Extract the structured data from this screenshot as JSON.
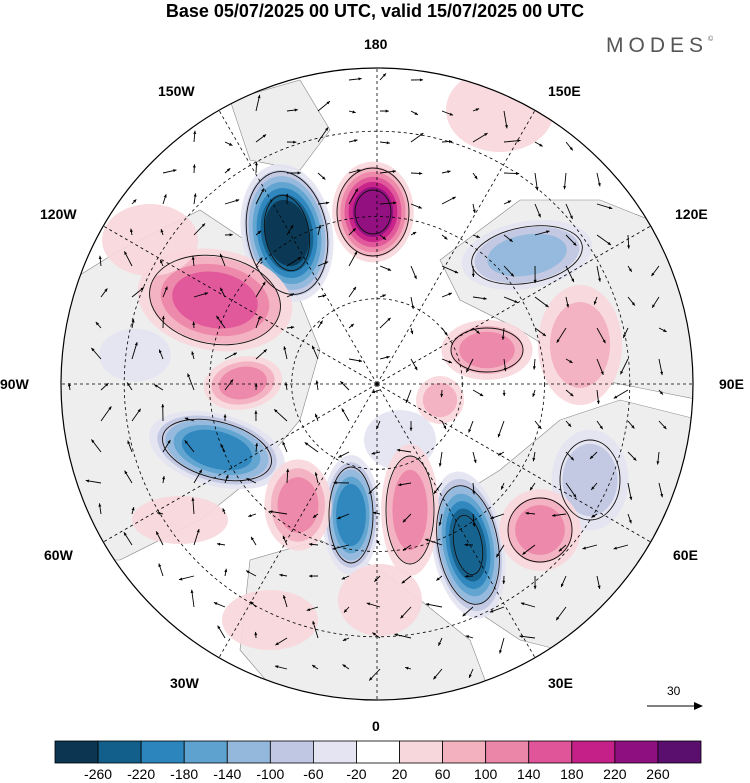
{
  "title": "Base 05/07/2025 00 UTC, valid 15/07/2025 00 UTC",
  "logo": {
    "text": "MODES",
    "mark": "©"
  },
  "longitude_labels": [
    {
      "key": "lon_180",
      "text": "180"
    },
    {
      "key": "lon_150e",
      "text": "150E"
    },
    {
      "key": "lon_120e",
      "text": "120E"
    },
    {
      "key": "lon_90e",
      "text": "90E"
    },
    {
      "key": "lon_60e",
      "text": "60E"
    },
    {
      "key": "lon_30e",
      "text": "30E"
    },
    {
      "key": "lon_0",
      "text": "0"
    },
    {
      "key": "lon_30w",
      "text": "30W"
    },
    {
      "key": "lon_60w",
      "text": "60W"
    },
    {
      "key": "lon_90w",
      "text": "90W"
    },
    {
      "key": "lon_120w",
      "text": "120W"
    },
    {
      "key": "lon_150w",
      "text": "150W"
    }
  ],
  "reference_vector": {
    "value": "30"
  },
  "colorbar": {
    "tick_labels": [
      "-260",
      "-220",
      "-180",
      "-140",
      "-100",
      "-60",
      "-20",
      "20",
      "60",
      "100",
      "140",
      "180",
      "220",
      "260"
    ],
    "colors": [
      "#0b3550",
      "#135f8c",
      "#2c86bd",
      "#5ea3cf",
      "#93b8dc",
      "#c0c7e2",
      "#e4e4f2",
      "#ffffff",
      "#f8d7dc",
      "#f3b0bf",
      "#ec86a8",
      "#e0559a",
      "#c52088",
      "#8e0f80",
      "#5a0f6e"
    ]
  },
  "colors": {
    "land": "#eeeeee",
    "ocean": "#ffffff",
    "coast": "#888888",
    "grid": "#000000"
  }
}
